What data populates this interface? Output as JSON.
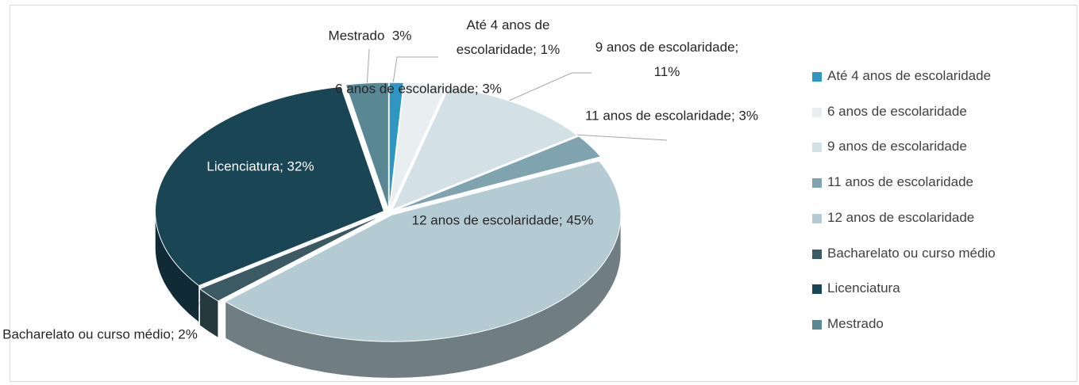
{
  "chart_data": {
    "type": "pie",
    "categories": [
      "Até 4 anos de escolaridade",
      "6 anos de escolaridade",
      "9 anos de escolaridade",
      "11 anos de escolaridade",
      "12 anos de escolaridade",
      "Bacharelato ou curso médio",
      "Licenciatura",
      "Mestrado"
    ],
    "values": [
      1,
      3,
      11,
      3,
      45,
      2,
      32,
      3
    ],
    "value_labels": [
      "Até 4 anos de escolaridade; 1%",
      "6 anos de escolaridade; 3%",
      "9 anos de escolaridade; 11%",
      "11 anos de escolaridade; 3%",
      "12 anos de escolaridade; 45%",
      "Bacharelato ou curso médio; 2%",
      "Licenciatura; 32%",
      "Mestrado  3%"
    ],
    "colors": [
      "#2e96c0",
      "#e9eff1",
      "#d3e0e5",
      "#7fa4b0",
      "#b4cbd3",
      "#3c5a63",
      "#1a4555",
      "#5a8794"
    ],
    "legend": "right"
  }
}
